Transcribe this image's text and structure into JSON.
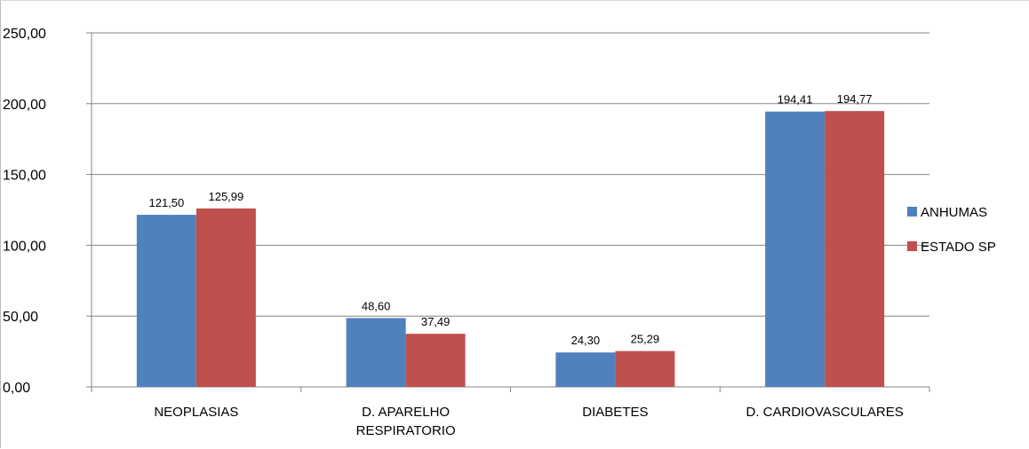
{
  "chart_data": {
    "type": "bar",
    "categories": [
      [
        "NEOPLASIAS"
      ],
      [
        "D. APARELHO",
        "RESPIRATORIO"
      ],
      [
        "DIABETES"
      ],
      [
        "D. CARDIOVASCULARES"
      ]
    ],
    "series": [
      {
        "name": "ANHUMAS",
        "color": "#4F81BD",
        "values": [
          121.5,
          48.6,
          24.3,
          194.41
        ],
        "labels": [
          "121,50",
          "48,60",
          "24,30",
          "194,41"
        ]
      },
      {
        "name": "ESTADO SP",
        "color": "#C0504D",
        "values": [
          125.99,
          37.49,
          25.29,
          194.77
        ],
        "labels": [
          "125,99",
          "37,49",
          "25,29",
          "194,77"
        ]
      }
    ],
    "yticks": [
      "0,00",
      "50,00",
      "100,00",
      "150,00",
      "200,00",
      "250,00"
    ],
    "ylim": [
      0,
      250
    ],
    "grid": true,
    "legend_position": "right"
  }
}
